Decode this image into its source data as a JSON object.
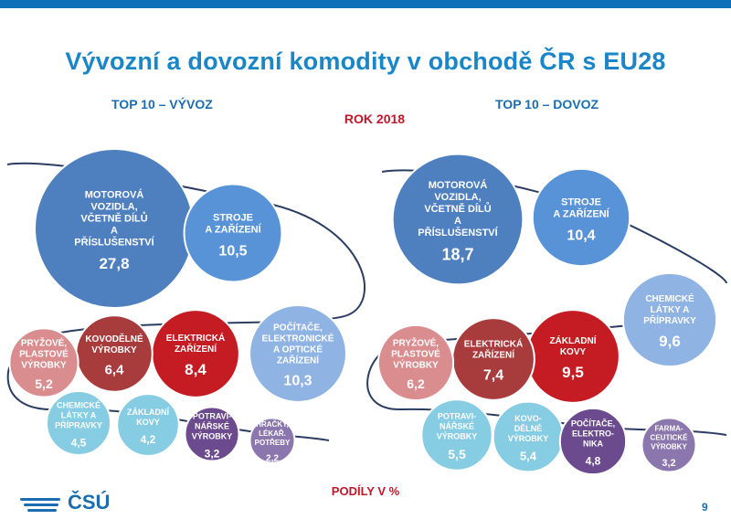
{
  "title": "Vývozní a dovozní komodity v obchodě ČR s EU28",
  "year_label": "ROK 2018",
  "footer_label": "PODÍLY V %",
  "page_number": "9",
  "logo_text": "ČSÚ",
  "colors": {
    "dark_blue": "#4e7fbe",
    "mid_blue": "#5893d8",
    "light_blue": "#8fb4e4",
    "dark_red": "#a83c3c",
    "red": "#c51c24",
    "pink": "#d98d8f",
    "cyan": "#86cde3",
    "purple": "#6c4a8e",
    "light_purple": "#8b76ad"
  },
  "chart_data": [
    {
      "type": "bubble",
      "subtitle": "TOP 10 – VÝVOZ",
      "unit": "%",
      "items": [
        {
          "label": [
            "MOTOROVÁ",
            "VOZIDLA,",
            "VČETNĚ DÍLŮ",
            "A",
            "PŘÍSLUŠENSTVÍ"
          ],
          "value": 27.8,
          "display": "27,8",
          "color": "dark_blue"
        },
        {
          "label": [
            "STROJE",
            "A ZAŘÍZENÍ"
          ],
          "value": 10.5,
          "display": "10,5",
          "color": "mid_blue"
        },
        {
          "label": [
            "POČÍTAČE,",
            "ELEKTRONICKÉ",
            "A OPTICKÉ",
            "ZAŘÍZENÍ"
          ],
          "value": 10.3,
          "display": "10,3",
          "color": "light_blue"
        },
        {
          "label": [
            "ELEKTRICKÁ",
            "ZAŘÍZENÍ"
          ],
          "value": 8.4,
          "display": "8,4",
          "color": "red"
        },
        {
          "label": [
            "KOVODĚLNÉ",
            "VÝROBKY"
          ],
          "value": 6.4,
          "display": "6,4",
          "color": "dark_red"
        },
        {
          "label": [
            "PRYŽOVÉ,",
            "PLASTOVÉ",
            "VÝROBKY"
          ],
          "value": 5.2,
          "display": "5,2",
          "color": "pink"
        },
        {
          "label": [
            "CHEMICKÉ",
            "LÁTKY A",
            "PŘÍPRAVKY"
          ],
          "value": 4.5,
          "display": "4,5",
          "color": "cyan"
        },
        {
          "label": [
            "ZÁKLADNÍ",
            "KOVY"
          ],
          "value": 4.2,
          "display": "4,2",
          "color": "cyan"
        },
        {
          "label": [
            "POTRAVI-",
            "NÁŘSKÉ",
            "VÝROBKY"
          ],
          "value": 3.2,
          "display": "3,2",
          "color": "purple"
        },
        {
          "label": [
            "HRAČKY,",
            "LÉKAŘ.",
            "POTŘEBY"
          ],
          "value": 2.2,
          "display": "2,2",
          "color": "light_purple"
        }
      ]
    },
    {
      "type": "bubble",
      "subtitle": "TOP 10 – DOVOZ",
      "unit": "%",
      "items": [
        {
          "label": [
            "MOTOROVÁ",
            "VOZIDLA,",
            "VČETNĚ DÍLŮ",
            "A",
            "PŘÍSLUŠENSTVÍ"
          ],
          "value": 18.7,
          "display": "18,7",
          "color": "dark_blue"
        },
        {
          "label": [
            "STROJE",
            "A ZAŘÍZENÍ"
          ],
          "value": 10.4,
          "display": "10,4",
          "color": "mid_blue"
        },
        {
          "label": [
            "CHEMICKÉ",
            "LÁTKY A",
            "PŘÍPRAVKY"
          ],
          "value": 9.6,
          "display": "9,6",
          "color": "light_blue"
        },
        {
          "label": [
            "ZÁKLADNÍ",
            "KOVY"
          ],
          "value": 9.5,
          "display": "9,5",
          "color": "red"
        },
        {
          "label": [
            "ELEKTRICKÁ",
            "ZAŘÍZENÍ"
          ],
          "value": 7.4,
          "display": "7,4",
          "color": "dark_red"
        },
        {
          "label": [
            "PRYŽOVÉ,",
            "PLASTOVÉ",
            "VÝROBKY"
          ],
          "value": 6.2,
          "display": "6,2",
          "color": "pink"
        },
        {
          "label": [
            "POTRAVI-",
            "NÁŘSKÉ",
            "VÝROBKY"
          ],
          "value": 5.5,
          "display": "5,5",
          "color": "cyan"
        },
        {
          "label": [
            "KOVO-",
            "DĚLNÉ",
            "VÝROBKY"
          ],
          "value": 5.4,
          "display": "5,4",
          "color": "cyan"
        },
        {
          "label": [
            "POČÍTAČE,",
            "ELEKTRO-",
            "NIKA"
          ],
          "value": 4.8,
          "display": "4,8",
          "color": "purple"
        },
        {
          "label": [
            "FARMA-",
            "CEUTICKÉ",
            "VÝROBKY"
          ],
          "value": 3.2,
          "display": "3,2",
          "color": "light_purple"
        }
      ]
    }
  ]
}
